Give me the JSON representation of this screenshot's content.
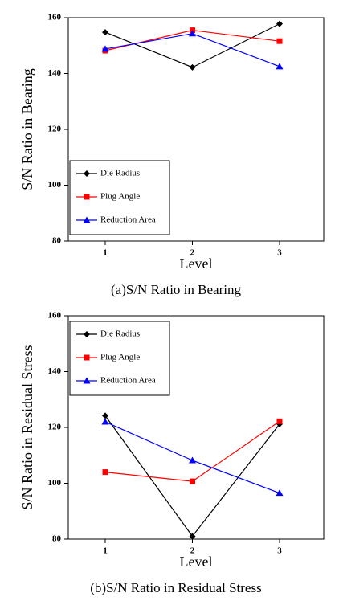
{
  "chart_data": [
    {
      "type": "line",
      "caption": "(a)S/N Ratio in Bearing",
      "xlabel": "Level",
      "ylabel": "S/N Ratio in Bearing",
      "categories": [
        "1",
        "2",
        "3"
      ],
      "ylim": [
        80,
        160
      ],
      "yticks": [
        80,
        100,
        120,
        140,
        160
      ],
      "legend": "lower left",
      "series": [
        {
          "name": "Die Radius",
          "color": "#000000",
          "marker": "diamond",
          "values": [
            154.8,
            142.2,
            157.8
          ]
        },
        {
          "name": "Plug Angle",
          "color": "#ff0000",
          "marker": "square",
          "values": [
            148.2,
            155.5,
            151.6
          ]
        },
        {
          "name": "Reduction Area",
          "color": "#0000ff",
          "marker": "triangle",
          "values": [
            148.8,
            154.3,
            142.5
          ]
        }
      ]
    },
    {
      "type": "line",
      "caption": "(b)S/N Ratio in Residual Stress",
      "xlabel": "Level",
      "ylabel": "S/N Ratio in Residual Stress",
      "categories": [
        "1",
        "2",
        "3"
      ],
      "ylim": [
        80,
        160
      ],
      "yticks": [
        80,
        100,
        120,
        140,
        160
      ],
      "legend": "upper left",
      "series": [
        {
          "name": "Die Radius",
          "color": "#000000",
          "marker": "diamond",
          "values": [
            124.2,
            81,
            121.2
          ]
        },
        {
          "name": "Plug Angle",
          "color": "#ff0000",
          "marker": "square",
          "values": [
            104,
            100.7,
            122.2
          ]
        },
        {
          "name": "Reduction Area",
          "color": "#0000ff",
          "marker": "triangle",
          "values": [
            122,
            108.2,
            96.5
          ]
        }
      ]
    }
  ]
}
